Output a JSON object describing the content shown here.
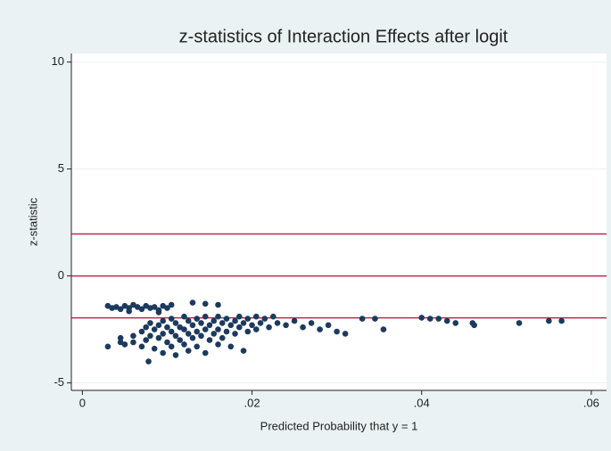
{
  "chart_data": {
    "type": "scatter",
    "title": "z-statistics of Interaction Effects after logit",
    "x_label": "Predicted Probability that y = 1",
    "y_label": "z-statistic",
    "color": "#1c3a5e",
    "reference_lines": [
      1.96,
      0,
      -1.96
    ],
    "reference_color": "#c0284a",
    "grid": true,
    "xlim": [
      -0.0013,
      0.0618
    ],
    "ylim": [
      -5.35,
      10.4
    ],
    "xticks": [
      {
        "value": 0,
        "label": "0"
      },
      {
        "value": 0.02,
        "label": ".02"
      },
      {
        "value": 0.04,
        "label": ".04"
      },
      {
        "value": 0.06,
        "label": ".06"
      }
    ],
    "yticks": [
      -5,
      0,
      5,
      10
    ],
    "x": [
      0.003,
      0.0035,
      0.004,
      0.0045,
      0.005,
      0.0055,
      0.006,
      0.0065,
      0.007,
      0.0075,
      0.008,
      0.0085,
      0.009,
      0.0095,
      0.01,
      0.0105,
      0.013,
      0.0145,
      0.016,
      0.0055,
      0.009,
      0.003,
      0.0045,
      0.0045,
      0.005,
      0.006,
      0.006,
      0.007,
      0.007,
      0.0075,
      0.0075,
      0.008,
      0.008,
      0.0078,
      0.0085,
      0.0085,
      0.009,
      0.009,
      0.0095,
      0.0095,
      0.0095,
      0.01,
      0.01,
      0.0105,
      0.0105,
      0.0105,
      0.011,
      0.011,
      0.011,
      0.0115,
      0.0115,
      0.012,
      0.012,
      0.012,
      0.0125,
      0.0125,
      0.0125,
      0.013,
      0.013,
      0.0135,
      0.0135,
      0.0135,
      0.014,
      0.014,
      0.0145,
      0.0145,
      0.0145,
      0.015,
      0.015,
      0.0155,
      0.0155,
      0.016,
      0.016,
      0.016,
      0.0165,
      0.0165,
      0.017,
      0.017,
      0.0175,
      0.0175,
      0.018,
      0.018,
      0.0185,
      0.0185,
      0.019,
      0.019,
      0.0195,
      0.0195,
      0.02,
      0.0205,
      0.0205,
      0.021,
      0.0215,
      0.022,
      0.0225,
      0.023,
      0.024,
      0.025,
      0.026,
      0.027,
      0.028,
      0.029,
      0.03,
      0.031,
      0.033,
      0.0345,
      0.0355,
      0.04,
      0.041,
      0.042,
      0.043,
      0.044,
      0.046,
      0.0462,
      0.0515,
      0.055,
      0.0565
    ],
    "values": [
      -1.4,
      -1.5,
      -1.45,
      -1.55,
      -1.4,
      -1.5,
      -1.35,
      -1.45,
      -1.55,
      -1.4,
      -1.5,
      -1.45,
      -1.6,
      -1.4,
      -1.5,
      -1.35,
      -1.25,
      -1.3,
      -1.35,
      -1.65,
      -1.7,
      -3.3,
      -3.1,
      -2.9,
      -3.2,
      -2.8,
      -3.1,
      -2.6,
      -3.3,
      -2.4,
      -3.0,
      -2.2,
      -2.8,
      -4.0,
      -2.5,
      -3.4,
      -2.3,
      -2.9,
      -2.1,
      -2.7,
      -3.6,
      -2.4,
      -3.1,
      -2.0,
      -2.6,
      -3.3,
      -2.2,
      -2.8,
      -3.7,
      -2.4,
      -3.0,
      -1.9,
      -2.5,
      -3.2,
      -2.1,
      -2.7,
      -3.5,
      -2.3,
      -2.9,
      -2.0,
      -2.6,
      -3.3,
      -2.2,
      -2.8,
      -1.9,
      -2.5,
      -3.6,
      -2.3,
      -3.0,
      -2.1,
      -2.7,
      -1.9,
      -2.5,
      -3.2,
      -2.2,
      -2.9,
      -2.0,
      -2.6,
      -2.3,
      -3.3,
      -2.1,
      -2.7,
      -1.9,
      -2.4,
      -2.2,
      -3.5,
      -2.0,
      -2.6,
      -2.3,
      -1.9,
      -2.5,
      -2.2,
      -2.0,
      -2.4,
      -1.9,
      -2.2,
      -2.3,
      -2.1,
      -2.4,
      -2.2,
      -2.5,
      -2.3,
      -2.6,
      -2.7,
      -2.0,
      -2.0,
      -2.5,
      -1.95,
      -2.0,
      -2.0,
      -2.1,
      -2.2,
      -2.2,
      -2.3,
      -2.2,
      -2.1,
      -2.1
    ]
  }
}
